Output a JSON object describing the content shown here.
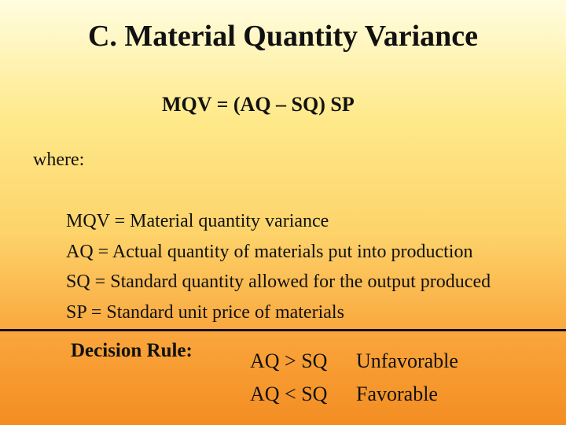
{
  "title": "C. Material Quantity Variance",
  "formula": "MQV = (AQ – SQ) SP",
  "where_label": "where:",
  "definitions": [
    "MQV = Material quantity variance",
    "AQ = Actual quantity of materials put into production",
    "SQ = Standard quantity allowed for the output produced",
    "SP = Standard unit price of materials"
  ],
  "decision_rule": {
    "label": "Decision Rule:",
    "rows": [
      {
        "condition": "AQ > SQ",
        "result": "Unfavorable"
      },
      {
        "condition": "AQ < SQ",
        "result": "Favorable"
      }
    ]
  }
}
